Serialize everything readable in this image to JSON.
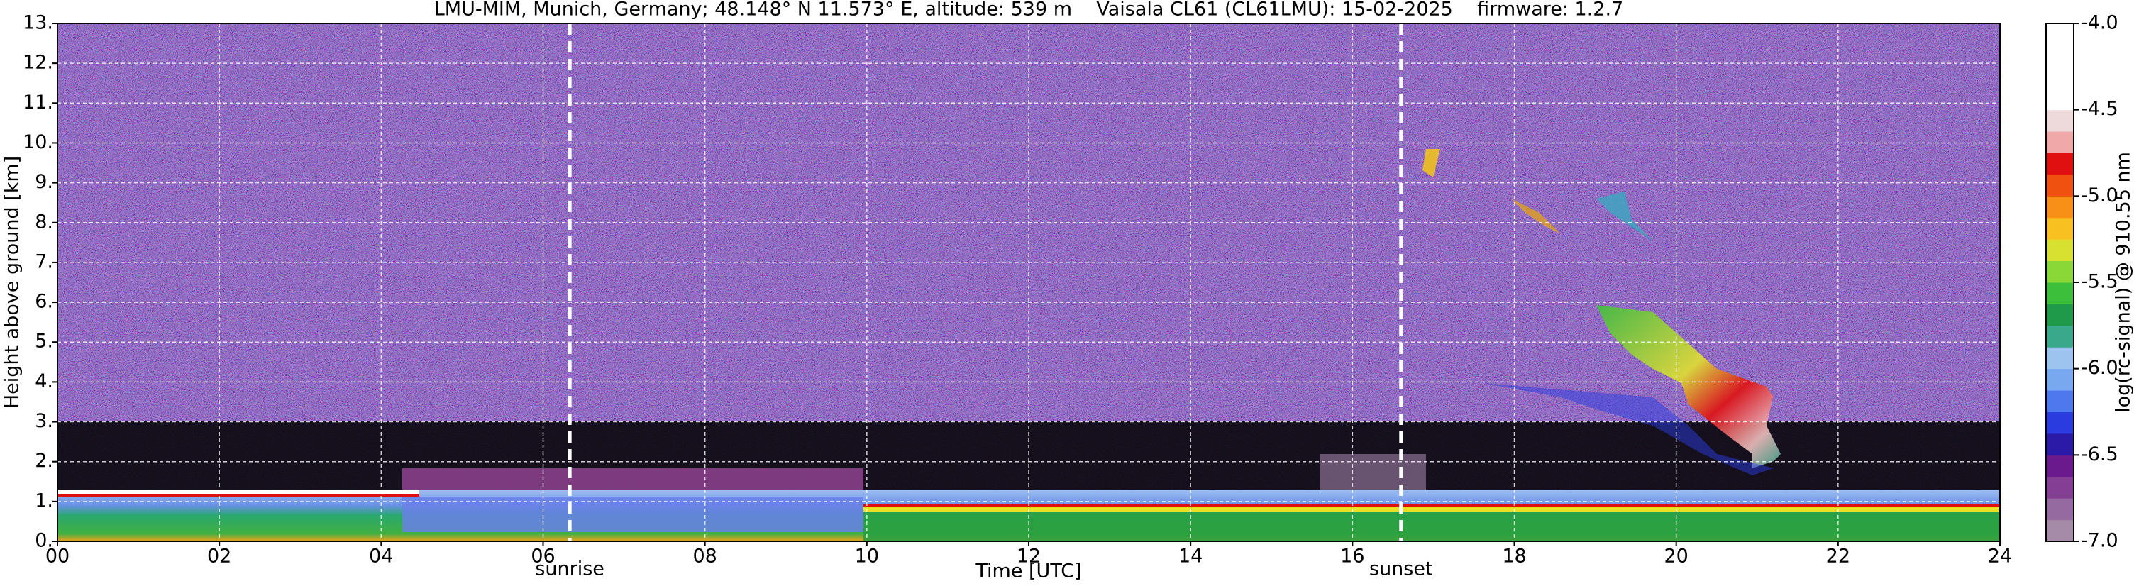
{
  "chart_data": {
    "type": "heatmap",
    "title": "LMU-MIM, Munich, Germany; 48.148° N 11.573° E, altitude: 539 m    Vaisala CL61 (CL61LMU): 15-02-2025    firmware: 1.2.7",
    "xlabel": "Time [UTC]",
    "ylabel": "Height above ground [km]",
    "xlim": [
      0,
      24
    ],
    "xticks": [
      {
        "value": 0,
        "label": "00"
      },
      {
        "value": 2,
        "label": "02"
      },
      {
        "value": 4,
        "label": "04"
      },
      {
        "value": 6,
        "label": "06"
      },
      {
        "value": 8,
        "label": "08"
      },
      10,
      12,
      14,
      16,
      18,
      20,
      22,
      24
    ],
    "ylim": [
      0,
      13
    ],
    "yticks": [
      {
        "value": 0,
        "label": "0."
      },
      {
        "value": 1,
        "label": "1."
      },
      {
        "value": 2,
        "label": "2."
      },
      {
        "value": 3,
        "label": "3."
      },
      {
        "value": 4,
        "label": "4."
      },
      {
        "value": 5,
        "label": "5."
      },
      {
        "value": 6,
        "label": "6."
      },
      {
        "value": 7,
        "label": "7."
      },
      {
        "value": 8,
        "label": "8."
      },
      {
        "value": 9,
        "label": "9."
      },
      {
        "value": 10,
        "label": "10."
      },
      {
        "value": 11,
        "label": "11."
      },
      {
        "value": 12,
        "label": "12."
      },
      {
        "value": 13,
        "label": "13."
      }
    ],
    "grid": true,
    "annotations": [
      {
        "text": "sunrise",
        "x": 6.33
      },
      {
        "text": "sunset",
        "x": 16.6
      }
    ],
    "colorbar": {
      "label": "log(rc-signal) @ 910.55 nm",
      "lim": [
        -7,
        -4
      ],
      "ticks": [
        {
          "value": -4,
          "label": "-4.0"
        },
        -4.5,
        {
          "value": -5,
          "label": "-5.0"
        },
        -5.5,
        {
          "value": -6,
          "label": "-6.0"
        },
        -6.5,
        {
          "value": -7,
          "label": "-7.0"
        }
      ],
      "colors": [
        "#a68ba8",
        "#956aa0",
        "#843f94",
        "#6a1a8c",
        "#2b1aa8",
        "#2a3ce0",
        "#4d78ee",
        "#78a8f0",
        "#9cc4ee",
        "#3aa88a",
        "#1f9a4a",
        "#3cc03c",
        "#8ad838",
        "#d8e030",
        "#f8c020",
        "#f89018",
        "#f05010",
        "#e01010",
        "#f0a8a8",
        "#eedada",
        "#ffffff",
        "#ffffff",
        "#ffffff",
        "#ffffff"
      ]
    }
  }
}
